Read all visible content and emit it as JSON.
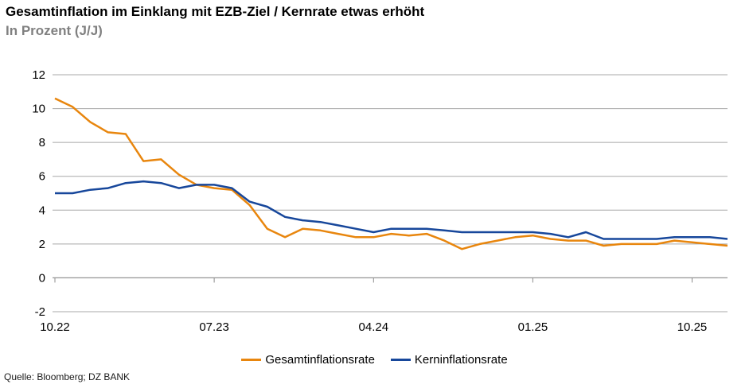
{
  "chart_data": {
    "type": "line",
    "title": "Gesamtinflation im Einklang mit EZB-Ziel / Kernrate etwas erhöht",
    "subtitle": "In Prozent (J/J)",
    "ylim": [
      -2,
      12
    ],
    "ytick_step": 2,
    "grid": "horizontal-only",
    "legend_position": "bottom",
    "x": [
      "10.22",
      "11.22",
      "12.22",
      "01.23",
      "02.23",
      "03.23",
      "04.23",
      "05.23",
      "06.23",
      "07.23",
      "08.23",
      "09.23",
      "10.23",
      "11.23",
      "12.23",
      "01.24",
      "02.24",
      "03.24",
      "04.24",
      "05.24",
      "06.24",
      "07.24",
      "08.24",
      "09.24",
      "10.24",
      "11.24",
      "12.24",
      "01.25",
      "02.25",
      "03.25",
      "04.25",
      "05.25",
      "06.25",
      "07.25",
      "08.25",
      "09.25",
      "10.25",
      "11.25",
      "12.25"
    ],
    "xticks": [
      {
        "index": 0,
        "label": "10.22"
      },
      {
        "index": 9,
        "label": "07.23"
      },
      {
        "index": 18,
        "label": "04.24"
      },
      {
        "index": 27,
        "label": "01.25"
      },
      {
        "index": 36,
        "label": "10.25"
      }
    ],
    "series": [
      {
        "name": "Gesamtinflationsrate",
        "color": "#E8860E",
        "values": [
          10.6,
          10.1,
          9.2,
          8.6,
          8.5,
          6.9,
          7.0,
          6.1,
          5.5,
          5.3,
          5.2,
          4.3,
          2.9,
          2.4,
          2.9,
          2.8,
          2.6,
          2.4,
          2.4,
          2.6,
          2.5,
          2.6,
          2.2,
          1.7,
          2.0,
          2.2,
          2.4,
          2.5,
          2.3,
          2.2,
          2.2,
          1.9,
          2.0,
          2.0,
          2.0,
          2.2,
          2.1,
          2.0,
          1.9
        ]
      },
      {
        "name": "Kerninflationsrate",
        "color": "#17479B",
        "values": [
          5.0,
          5.0,
          5.2,
          5.3,
          5.6,
          5.7,
          5.6,
          5.3,
          5.5,
          5.5,
          5.3,
          4.5,
          4.2,
          3.6,
          3.4,
          3.3,
          3.1,
          2.9,
          2.7,
          2.9,
          2.9,
          2.9,
          2.8,
          2.7,
          2.7,
          2.7,
          2.7,
          2.7,
          2.6,
          2.4,
          2.7,
          2.3,
          2.3,
          2.3,
          2.3,
          2.4,
          2.4,
          2.4,
          2.3
        ]
      }
    ]
  },
  "source": "Quelle: Bloomberg; DZ BANK",
  "colors": {
    "grid": "#A8A8A8",
    "axis": "#8C8C8C",
    "axis_text": "#000000",
    "title_text": "#000000",
    "subtitle_text": "#808080",
    "background": "#FFFFFF"
  }
}
